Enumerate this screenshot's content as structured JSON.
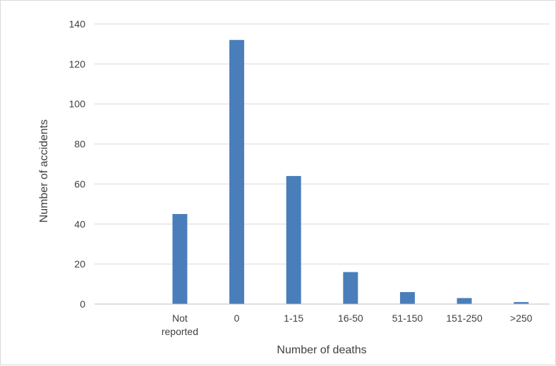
{
  "chart_data": {
    "type": "bar",
    "categories": [
      [
        "Not",
        "reported"
      ],
      [
        "0"
      ],
      [
        "1-15"
      ],
      [
        "16-50"
      ],
      [
        "51-150"
      ],
      [
        "151-250"
      ],
      [
        ">250"
      ]
    ],
    "values": [
      45,
      132,
      64,
      16,
      6,
      3,
      1
    ],
    "title": "",
    "xlabel": "Number of deaths",
    "ylabel": "Number of accidents",
    "ylim": [
      0,
      140
    ],
    "y_ticks": [
      "0",
      "20",
      "40",
      "60",
      "80",
      "100",
      "120",
      "140"
    ],
    "grid": "horizontal",
    "colors": {
      "bar": "#4a7ebb",
      "grid": "#d9d9d9",
      "axis": "#bfbfbf",
      "text": "#404040"
    }
  }
}
